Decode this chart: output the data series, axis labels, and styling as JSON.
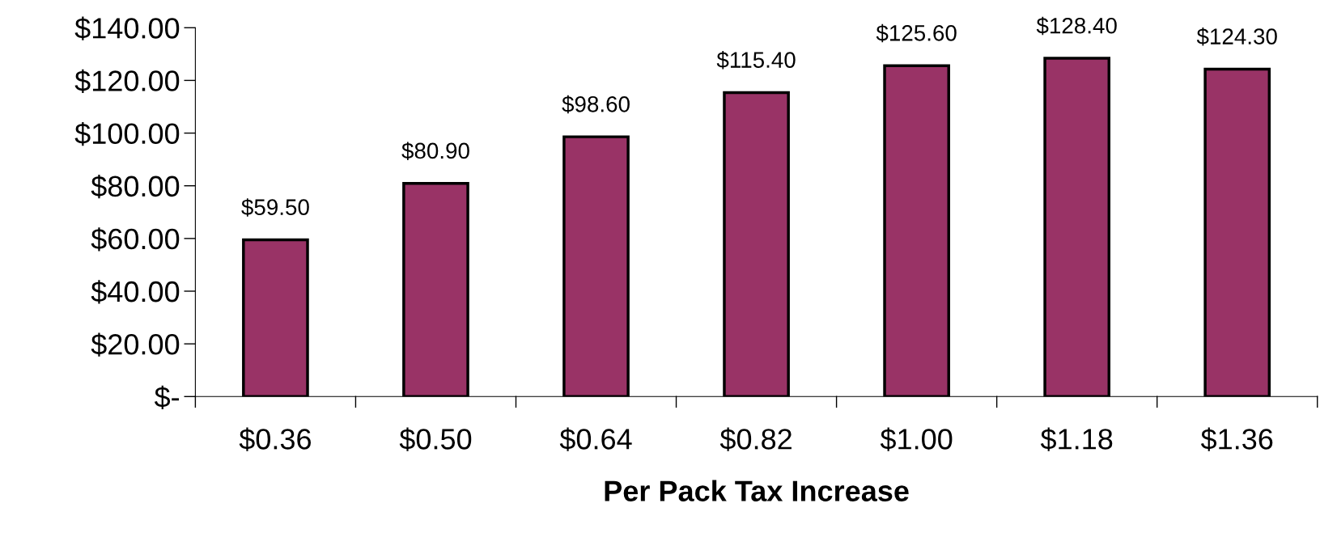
{
  "chart_data": {
    "type": "bar",
    "xlabel": "Per Pack Tax Increase",
    "categories": [
      "$0.36",
      "$0.50",
      "$0.64",
      "$0.82",
      "$1.00",
      "$1.18",
      "$1.36"
    ],
    "values": [
      59.5,
      80.9,
      98.6,
      115.4,
      125.6,
      128.4,
      124.3
    ],
    "value_labels": [
      "$59.50",
      "$80.90",
      "$98.60",
      "$115.40",
      "$125.60",
      "$128.40",
      "$124.30"
    ],
    "color": "#993366",
    "ylim": [
      0,
      140
    ],
    "yticks": [
      {
        "value": 0,
        "label": "$-"
      },
      {
        "value": 20,
        "label": "$20.00"
      },
      {
        "value": 40,
        "label": "$40.00"
      },
      {
        "value": 60,
        "label": "$60.00"
      },
      {
        "value": 80,
        "label": "$80.00"
      },
      {
        "value": 100,
        "label": "$100.00"
      },
      {
        "value": 120,
        "label": "$120.00"
      },
      {
        "value": 140,
        "label": "$140.00"
      }
    ],
    "grid": false,
    "legend": false
  }
}
